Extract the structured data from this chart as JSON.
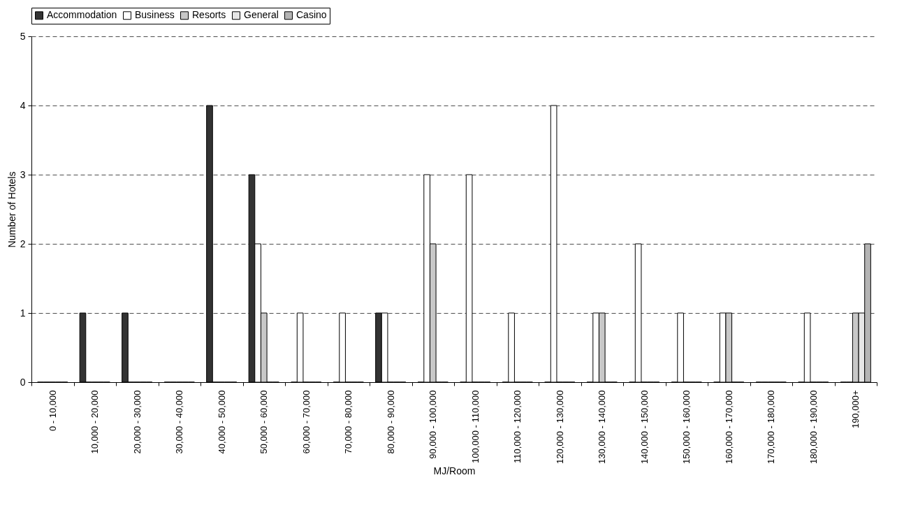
{
  "chart_data": {
    "type": "bar",
    "xlabel": "MJ/Room",
    "ylabel": "Number of Hotels",
    "categories": [
      "0 - 10,000",
      "10,000 - 20,000",
      "20,000 - 30,000",
      "30,000 - 40,000",
      "40,000 - 50,000",
      "50,000 - 60,000",
      "60,000 - 70,000",
      "70,000 - 80,000",
      "80,000 - 90,000",
      "90,000 - 100,000",
      "100,000 - 110,000",
      "110,000 - 120,000",
      "120,000 - 130,000",
      "130,000 - 140,000",
      "140,000 - 150,000",
      "150,000 - 160,000",
      "160,000 - 170,000",
      "170,000 - 180,000",
      "180,000 - 190,000",
      "190,000+"
    ],
    "series": [
      {
        "name": "Accommodation",
        "color": "#333333",
        "values": [
          0,
          1,
          1,
          0,
          4,
          3,
          0,
          0,
          1,
          0,
          0,
          0,
          0,
          0,
          0,
          0,
          0,
          0,
          0,
          0
        ]
      },
      {
        "name": "Business",
        "color": "#ffffff",
        "values": [
          0,
          0,
          0,
          0,
          0,
          2,
          1,
          1,
          1,
          3,
          3,
          1,
          4,
          1,
          2,
          1,
          1,
          0,
          1,
          0
        ]
      },
      {
        "name": "Resorts",
        "color": "#c8c8c8",
        "values": [
          0,
          0,
          0,
          0,
          0,
          1,
          0,
          0,
          0,
          2,
          0,
          0,
          0,
          1,
          0,
          0,
          1,
          0,
          0,
          1
        ]
      },
      {
        "name": "General",
        "color": "#e6e6e6",
        "values": [
          0,
          0,
          0,
          0,
          0,
          0,
          0,
          0,
          0,
          0,
          0,
          0,
          0,
          0,
          0,
          0,
          0,
          0,
          0,
          1
        ]
      },
      {
        "name": "Casino",
        "color": "#b4b4b4",
        "values": [
          0,
          0,
          0,
          0,
          0,
          0,
          0,
          0,
          0,
          0,
          0,
          0,
          0,
          0,
          0,
          0,
          0,
          0,
          0,
          2
        ]
      }
    ],
    "ylim": [
      0,
      5
    ],
    "yticks": [
      0,
      1,
      2,
      3,
      4,
      5
    ],
    "grid": "y",
    "legend": "top"
  }
}
